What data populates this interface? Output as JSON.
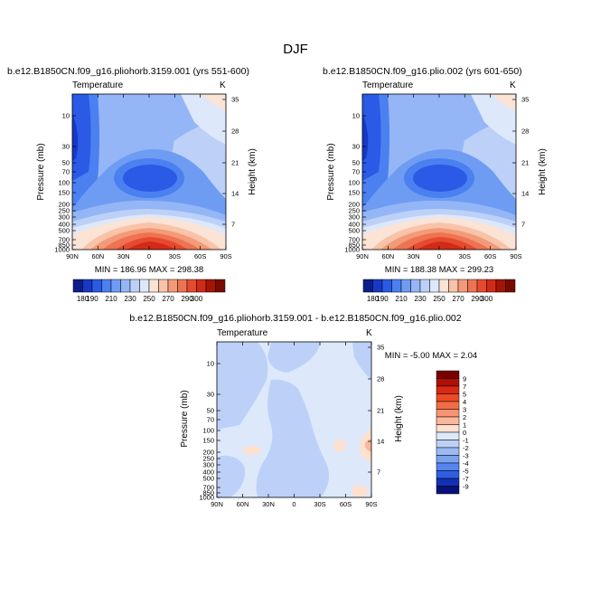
{
  "figure": {
    "title": "DJF"
  },
  "chart_data": [
    {
      "type": "heatmap",
      "title": "b.e12.B1850CN.f09_g16.pliohorb.3159.001 (yrs 551-600)",
      "variable": "Temperature",
      "units": "K",
      "xlabel": "",
      "ylabel": "Pressure (mb)",
      "ylabel_right": "Height (km)",
      "x_ticks": [
        "90N",
        "60N",
        "30N",
        "0",
        "30S",
        "60S",
        "90S"
      ],
      "y_ticks": [
        "10",
        "30",
        "50",
        "70",
        "100",
        "150",
        "200",
        "250",
        "300",
        "400",
        "500",
        "700",
        "850",
        "1000"
      ],
      "y_ticks_right": [
        "35",
        "28",
        "21",
        "14",
        "7"
      ],
      "stats": "MIN = 186.96   MAX = 298.38",
      "colorbar": {
        "labels": [
          "180",
          "190",
          "210",
          "230",
          "250",
          "270",
          "290",
          "300"
        ]
      }
    },
    {
      "type": "heatmap",
      "title": "b.e12.B1850CN.f09_g16.plio.002 (yrs 601-650)",
      "variable": "Temperature",
      "units": "K",
      "xlabel": "",
      "ylabel": "Pressure (mb)",
      "ylabel_right": "Height (km)",
      "x_ticks": [
        "90N",
        "60N",
        "30N",
        "0",
        "30S",
        "60S",
        "90S"
      ],
      "y_ticks": [
        "10",
        "30",
        "50",
        "70",
        "100",
        "150",
        "200",
        "250",
        "300",
        "400",
        "500",
        "700",
        "850",
        "1000"
      ],
      "y_ticks_right": [
        "35",
        "28",
        "21",
        "14",
        "7"
      ],
      "stats": "MIN = 188.38   MAX = 299.23",
      "colorbar": {
        "labels": [
          "180",
          "190",
          "210",
          "230",
          "250",
          "270",
          "290",
          "300"
        ]
      }
    },
    {
      "type": "heatmap",
      "title": "b.e12.B1850CN.f09_g16.pliohorb.3159.001 - b.e12.B1850CN.f09_g16.plio.002",
      "variable": "Temperature",
      "units": "K",
      "xlabel": "",
      "ylabel": "Pressure (mb)",
      "ylabel_right": "Height (km)",
      "x_ticks": [
        "90N",
        "60N",
        "30N",
        "0",
        "30S",
        "60S",
        "90S"
      ],
      "y_ticks": [
        "10",
        "30",
        "50",
        "70",
        "100",
        "150",
        "200",
        "250",
        "300",
        "400",
        "500",
        "700",
        "850",
        "1000"
      ],
      "y_ticks_right": [
        "35",
        "28",
        "21",
        "14",
        "7"
      ],
      "stats": "MIN = -5.00   MAX =  2.04",
      "colorbar": {
        "labels": [
          "9",
          "7",
          "5",
          "4",
          "3",
          "2",
          "1",
          "0",
          "-1",
          "-2",
          "-3",
          "-4",
          "-5",
          "-7",
          "-9"
        ]
      }
    }
  ],
  "colors": {
    "temp_scale": [
      "#0b1e8a",
      "#1738c6",
      "#2a5ae6",
      "#4a80f0",
      "#6f9cf3",
      "#95b6f6",
      "#bdd1f8",
      "#dde8fb",
      "#fbe3d6",
      "#f8c3a8",
      "#f39a78",
      "#ee7352",
      "#e64a2e",
      "#d22a18",
      "#a51505",
      "#7a0a00"
    ],
    "diff_scale": [
      "#7a0000",
      "#b00f05",
      "#d82a12",
      "#ec4a26",
      "#f46c45",
      "#f89473",
      "#fbb69b",
      "#fde0d0",
      "#dee8fb",
      "#bdd1f8",
      "#9bbaf4",
      "#7aa2f1",
      "#5585ee",
      "#2f5fe1",
      "#1430b5",
      "#06127a"
    ],
    "diff_base": "#dde8fb",
    "diff_minus": "#bdd1f8"
  }
}
